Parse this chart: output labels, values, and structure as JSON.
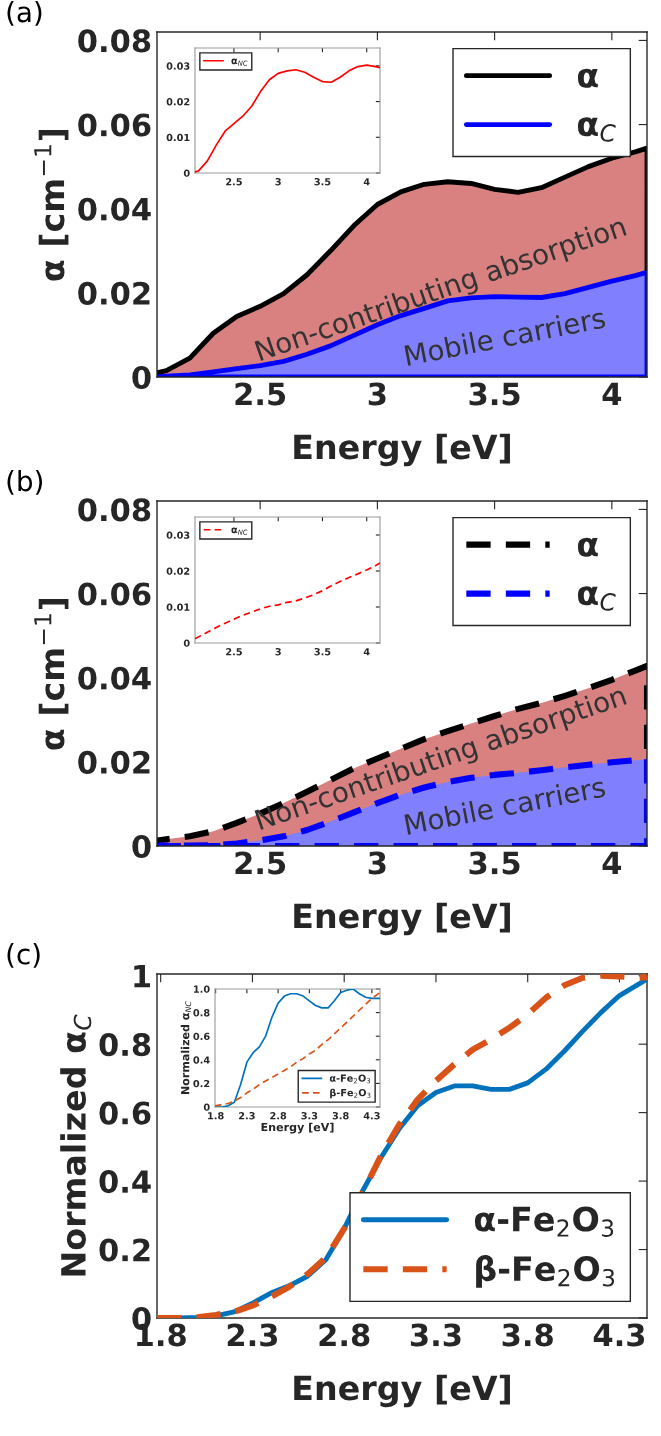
{
  "chart_data": [
    {
      "type": "area",
      "ylabel": "α [cm$^{−1}$]",
      "xlabel": "Energy [eV]",
      "annotations": [
        "(a)",
        "Non-contributing absorption",
        "Mobile carriers"
      ],
      "x": [
        2.06,
        2.1,
        2.2,
        2.3,
        2.4,
        2.5,
        2.6,
        2.7,
        2.8,
        2.9,
        3.0,
        3.1,
        3.2,
        3.3,
        3.4,
        3.5,
        3.6,
        3.7,
        3.8,
        3.9,
        4.0,
        4.1,
        4.15
      ],
      "series": [
        {
          "type": "area",
          "name": "α",
          "color": "#000000",
          "colors": [
            "#d98080",
            "#d98080",
            "#d98080",
            "#d98080",
            "#d98080",
            "#d98080",
            "#d98080",
            "#d98080",
            "#d98080",
            "#d98080",
            "#d98080",
            "#d98080",
            "#d98080",
            "#d98080",
            "#d98080",
            "#d98080",
            "#d98080",
            "#d98080",
            "#d98080",
            "#d98080",
            "#d98080",
            "#d98080",
            "#d98080"
          ],
          "line_style": "solid",
          "values": [
            0.001,
            0.0015,
            0.0045,
            0.0104,
            0.0144,
            0.0168,
            0.0198,
            0.0243,
            0.03,
            0.036,
            0.041,
            0.044,
            0.0458,
            0.0464,
            0.046,
            0.0446,
            0.0439,
            0.045,
            0.0475,
            0.05,
            0.052,
            0.0535,
            0.0544
          ]
        },
        {
          "type": "area",
          "name": "α$_{C}$",
          "color": "#0000ff",
          "colors": [
            "#8080ff",
            "#8080ff",
            "#8080ff",
            "#8080ff",
            "#8080ff",
            "#8080ff",
            "#8080ff",
            "#8080ff",
            "#8080ff",
            "#8080ff",
            "#8080ff",
            "#8080ff",
            "#8080ff",
            "#8080ff",
            "#8080ff",
            "#8080ff",
            "#8080ff",
            "#8080ff",
            "#8080ff",
            "#8080ff",
            "#8080ff",
            "#8080ff",
            "#8080ff"
          ],
          "line_style": "solid",
          "values": [
            0,
            0.0002,
            0.0005,
            0.0012,
            0.002,
            0.0027,
            0.0037,
            0.0054,
            0.0074,
            0.0099,
            0.0124,
            0.0146,
            0.0163,
            0.0181,
            0.0188,
            0.0191,
            0.019,
            0.0189,
            0.0198,
            0.0213,
            0.0228,
            0.0241,
            0.0249
          ]
        }
      ],
      "xlim": [
        2.06,
        4.15
      ],
      "ylim": [
        0,
        0.082
      ],
      "xticks": [
        2.5,
        3,
        3.5,
        4
      ],
      "yticks": [
        0,
        0.02,
        0.04,
        0.06,
        0.08
      ],
      "legend": "top right",
      "grid": false
    },
    {
      "type": "line",
      "x": [
        2.06,
        2.1,
        2.2,
        2.3,
        2.4,
        2.5,
        2.6,
        2.7,
        2.8,
        2.9,
        3.0,
        3.1,
        3.2,
        3.3,
        3.4,
        3.5,
        3.6,
        3.7,
        3.8,
        3.9,
        4.0,
        4.1,
        4.15
      ],
      "series": [
        {
          "name": "α$_{NC}$",
          "color": "#ff0000",
          "line_style": "solid",
          "values": [
            0.0003,
            0.0006,
            0.0034,
            0.0078,
            0.0117,
            0.0138,
            0.0159,
            0.0187,
            0.0228,
            0.0261,
            0.0279,
            0.0286,
            0.0289,
            0.0282,
            0.0268,
            0.0256,
            0.0254,
            0.0268,
            0.0286,
            0.0298,
            0.0302,
            0.0298,
            0.0295
          ]
        }
      ],
      "xlim": [
        2.06,
        4.15
      ],
      "ylim": [
        0,
        0.035
      ],
      "xticks": [
        2.5,
        3,
        3.5,
        4
      ],
      "yticks": [
        0,
        0.01,
        0.02,
        0.03
      ],
      "legend": "top left",
      "grid": false
    },
    {
      "type": "area",
      "ylabel": "α [cm$^{−1}$]",
      "xlabel": "Energy [eV]",
      "annotations": [
        "(b)",
        "Non-contributing absorption",
        "Mobile carriers"
      ],
      "x": [
        2.06,
        2.1,
        2.2,
        2.3,
        2.4,
        2.5,
        2.6,
        2.7,
        2.8,
        2.9,
        3.0,
        3.1,
        3.2,
        3.3,
        3.4,
        3.5,
        3.6,
        3.7,
        3.8,
        3.9,
        4.0,
        4.1,
        4.15
      ],
      "series": [
        {
          "type": "area",
          "name": "α",
          "color": "#000000",
          "colors": [
            "#d98080",
            "#d98080",
            "#d98080",
            "#d98080",
            "#d98080",
            "#d98080",
            "#d98080",
            "#d98080",
            "#d98080",
            "#d98080",
            "#d98080",
            "#d98080",
            "#d98080",
            "#d98080",
            "#d98080",
            "#d98080",
            "#d98080",
            "#d98080",
            "#d98080",
            "#d98080",
            "#d98080",
            "#d98080",
            "#d98080"
          ],
          "line_style": "dashed",
          "values": [
            0.0013,
            0.0016,
            0.0023,
            0.0035,
            0.0055,
            0.0077,
            0.0102,
            0.0129,
            0.0157,
            0.0185,
            0.0208,
            0.0231,
            0.0254,
            0.0273,
            0.0291,
            0.0309,
            0.0326,
            0.034,
            0.0357,
            0.0375,
            0.0395,
            0.0417,
            0.0428
          ]
        },
        {
          "type": "area",
          "name": "α$_{C}$",
          "color": "#0000ff",
          "colors": [
            "#8080ff",
            "#8080ff",
            "#8080ff",
            "#8080ff",
            "#8080ff",
            "#8080ff",
            "#8080ff",
            "#8080ff",
            "#8080ff",
            "#8080ff",
            "#8080ff",
            "#8080ff",
            "#8080ff",
            "#8080ff",
            "#8080ff",
            "#8080ff",
            "#8080ff",
            "#8080ff",
            "#8080ff",
            "#8080ff",
            "#8080ff",
            "#8080ff",
            "#8080ff"
          ],
          "line_style": "dashed",
          "values": [
            0.0001,
            0.0001,
            0.0001,
            0.0002,
            0.0006,
            0.0013,
            0.0023,
            0.0038,
            0.0058,
            0.008,
            0.0102,
            0.0122,
            0.0139,
            0.0152,
            0.0162,
            0.0169,
            0.0174,
            0.018,
            0.0187,
            0.0193,
            0.0199,
            0.0204,
            0.0206
          ]
        }
      ],
      "xlim": [
        2.06,
        4.15
      ],
      "ylim": [
        0,
        0.082
      ],
      "xticks": [
        2.5,
        3,
        3.5,
        4
      ],
      "yticks": [
        0,
        0.02,
        0.04,
        0.06,
        0.08
      ],
      "legend": "top right",
      "grid": false
    },
    {
      "type": "line",
      "x": [
        2.06,
        2.1,
        2.2,
        2.3,
        2.4,
        2.5,
        2.6,
        2.7,
        2.8,
        2.9,
        3.0,
        3.1,
        3.2,
        3.3,
        3.4,
        3.5,
        3.6,
        3.7,
        3.8,
        3.9,
        4.0,
        4.1,
        4.15
      ],
      "series": [
        {
          "name": "α$_{NC}$",
          "color": "#ff0000",
          "line_style": "dashed",
          "values": [
            0.0012,
            0.0017,
            0.003,
            0.0043,
            0.0055,
            0.0066,
            0.0077,
            0.0086,
            0.0095,
            0.0102,
            0.0106,
            0.0113,
            0.0117,
            0.0125,
            0.0134,
            0.0145,
            0.0159,
            0.0171,
            0.0182,
            0.0192,
            0.0203,
            0.0215,
            0.0222
          ]
        }
      ],
      "xlim": [
        2.06,
        4.15
      ],
      "ylim": [
        0,
        0.035
      ],
      "xticks": [
        2.5,
        3,
        3.5,
        4
      ],
      "yticks": [
        0,
        0.01,
        0.02,
        0.03
      ],
      "legend": "top left",
      "grid": false
    },
    {
      "type": "line",
      "ylabel": "Normalized α$_{C}$",
      "xlabel": "Energy [eV]",
      "annotations": [
        "(c)"
      ],
      "x": [
        1.78,
        1.9,
        2.0,
        2.1,
        2.2,
        2.3,
        2.4,
        2.5,
        2.6,
        2.7,
        2.8,
        2.9,
        3.0,
        3.1,
        3.2,
        3.3,
        3.4,
        3.5,
        3.6,
        3.7,
        3.8,
        3.9,
        4.0,
        4.1,
        4.2,
        4.3,
        4.4,
        4.45
      ],
      "series": [
        {
          "name": "α-Fe$_{2}$O$_{3}$",
          "color": "#0072bd",
          "line_style": "solid",
          "values": [
            0,
            0,
            0.002,
            0.006,
            0.018,
            0.043,
            0.073,
            0.094,
            0.122,
            0.17,
            0.261,
            0.371,
            0.468,
            0.553,
            0.62,
            0.659,
            0.678,
            0.678,
            0.668,
            0.668,
            0.687,
            0.727,
            0.78,
            0.838,
            0.893,
            0.942,
            0.974,
            0.99
          ]
        },
        {
          "name": "β-Fe$_{2}$O$_{3}$",
          "color": "#d95319",
          "line_style": "dashed",
          "values": [
            0,
            0,
            0.002,
            0.009,
            0.018,
            0.036,
            0.061,
            0.091,
            0.128,
            0.176,
            0.261,
            0.365,
            0.474,
            0.565,
            0.638,
            0.693,
            0.741,
            0.784,
            0.814,
            0.848,
            0.887,
            0.936,
            0.972,
            0.994,
            1.0,
            0.998,
            0.994,
            0.996
          ]
        }
      ],
      "xlim": [
        1.78,
        4.45
      ],
      "ylim": [
        0,
        1.005
      ],
      "xticks": [
        1.8,
        2.3,
        2.8,
        3.3,
        3.8,
        4.3
      ],
      "yticks": [
        0,
        0.2,
        0.4,
        0.6,
        0.8,
        1
      ],
      "legend": "bottom right",
      "grid": false
    },
    {
      "type": "line",
      "ylabel": "Normalized α$_{NC}$",
      "xlabel": "Energy [eV]",
      "x": [
        1.79,
        1.9,
        2.0,
        2.1,
        2.2,
        2.3,
        2.4,
        2.5,
        2.6,
        2.7,
        2.8,
        2.9,
        3.0,
        3.1,
        3.2,
        3.3,
        3.4,
        3.5,
        3.6,
        3.7,
        3.8,
        3.9,
        4.0,
        4.1,
        4.2,
        4.3,
        4.43
      ],
      "series": [
        {
          "name": "α-Fe$_{2}$O$_{3}$",
          "color": "#0072bd",
          "line_style": "solid",
          "values": [
            0,
            0,
            0.01,
            0.04,
            0.19,
            0.38,
            0.46,
            0.51,
            0.6,
            0.76,
            0.88,
            0.94,
            0.96,
            0.96,
            0.94,
            0.9,
            0.86,
            0.84,
            0.84,
            0.9,
            0.97,
            0.99,
            1.0,
            0.96,
            0.93,
            0.92,
            0.92
          ]
        },
        {
          "name": "β-Fe$_{2}$O$_{3}$",
          "color": "#d95319",
          "line_style": "dashed",
          "values": [
            0.01,
            0.02,
            0.03,
            0.05,
            0.08,
            0.12,
            0.15,
            0.19,
            0.22,
            0.25,
            0.28,
            0.31,
            0.34,
            0.38,
            0.41,
            0.45,
            0.48,
            0.53,
            0.57,
            0.62,
            0.67,
            0.72,
            0.77,
            0.82,
            0.87,
            0.92,
            0.97
          ]
        }
      ],
      "xlim": [
        1.79,
        4.43
      ],
      "ylim": [
        0,
        1.0
      ],
      "xticks": [
        1.8,
        2.3,
        2.8,
        3.3,
        3.8,
        4.3
      ],
      "yticks": [
        0,
        0.2,
        0.4,
        0.6,
        0.8,
        {
          "value": 1,
          "label": "1.0"
        }
      ],
      "legend": "bottom right",
      "grid": false
    }
  ]
}
